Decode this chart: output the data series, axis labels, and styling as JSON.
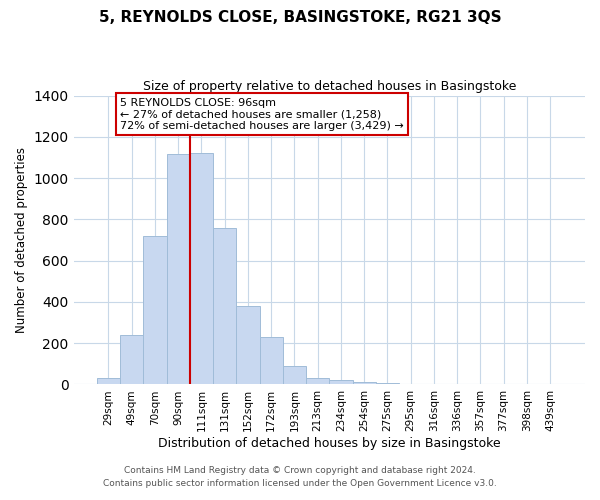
{
  "title": "5, REYNOLDS CLOSE, BASINGSTOKE, RG21 3QS",
  "subtitle": "Size of property relative to detached houses in Basingstoke",
  "xlabel": "Distribution of detached houses by size in Basingstoke",
  "ylabel": "Number of detached properties",
  "bar_labels": [
    "29sqm",
    "49sqm",
    "70sqm",
    "90sqm",
    "111sqm",
    "131sqm",
    "152sqm",
    "172sqm",
    "193sqm",
    "213sqm",
    "234sqm",
    "254sqm",
    "275sqm",
    "295sqm",
    "316sqm",
    "336sqm",
    "357sqm",
    "377sqm",
    "398sqm",
    "439sqm"
  ],
  "bar_values": [
    30,
    240,
    720,
    1115,
    1120,
    760,
    380,
    228,
    90,
    30,
    20,
    10,
    5,
    0,
    0,
    0,
    0,
    0,
    0,
    0
  ],
  "bar_color": "#c8d8f0",
  "bar_edge_color": "#a0bcd8",
  "vline_x_index": 4,
  "vline_color": "#cc0000",
  "annotation_text": "5 REYNOLDS CLOSE: 96sqm\n← 27% of detached houses are smaller (1,258)\n72% of semi-detached houses are larger (3,429) →",
  "annotation_box_color": "#ffffff",
  "annotation_box_edge": "#cc0000",
  "ylim": [
    0,
    1400
  ],
  "yticks": [
    0,
    200,
    400,
    600,
    800,
    1000,
    1200,
    1400
  ],
  "footer1": "Contains HM Land Registry data © Crown copyright and database right 2024.",
  "footer2": "Contains public sector information licensed under the Open Government Licence v3.0.",
  "background_color": "#ffffff",
  "grid_color": "#c8d8e8"
}
